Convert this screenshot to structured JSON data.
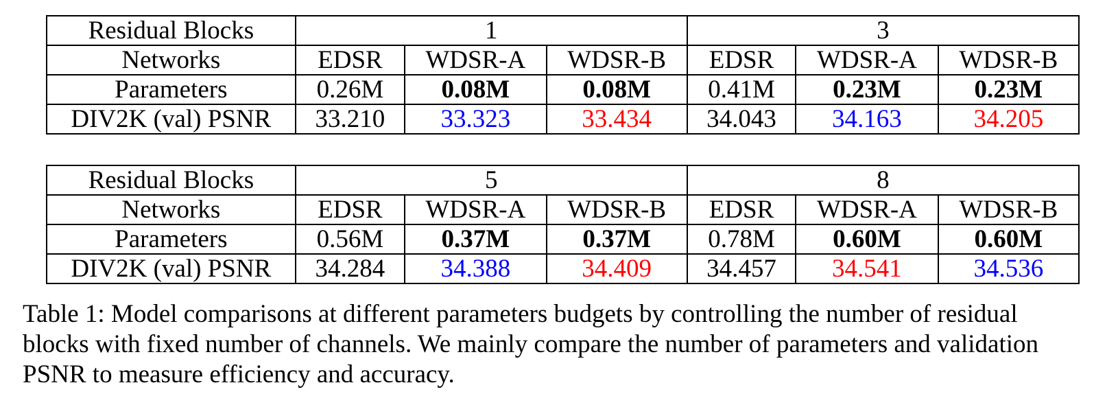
{
  "colors": {
    "blue_highlight": "#0000ff",
    "red_highlight": "#ff0000"
  },
  "tables": [
    {
      "row_labels": {
        "blocks": "Residual Blocks",
        "networks": "Networks",
        "params": "Parameters",
        "psnr": "DIV2K (val) PSNR"
      },
      "groups": [
        "1",
        "3"
      ],
      "networks": [
        "EDSR",
        "WDSR-A",
        "WDSR-B",
        "EDSR",
        "WDSR-A",
        "WDSR-B"
      ],
      "params": [
        "0.26M",
        "0.08M",
        "0.08M",
        "0.41M",
        "0.23M",
        "0.23M"
      ],
      "psnr": [
        "33.210",
        "33.323",
        "33.434",
        "34.043",
        "34.163",
        "34.205"
      ]
    },
    {
      "row_labels": {
        "blocks": "Residual Blocks",
        "networks": "Networks",
        "params": "Parameters",
        "psnr": "DIV2K (val) PSNR"
      },
      "groups": [
        "5",
        "8"
      ],
      "networks": [
        "EDSR",
        "WDSR-A",
        "WDSR-B",
        "EDSR",
        "WDSR-A",
        "WDSR-B"
      ],
      "params": [
        "0.56M",
        "0.37M",
        "0.37M",
        "0.78M",
        "0.60M",
        "0.60M"
      ],
      "psnr": [
        "34.284",
        "34.388",
        "34.409",
        "34.457",
        "34.541",
        "34.536"
      ]
    }
  ],
  "caption": {
    "line1": "Table 1: Model comparisons at different parameters budgets by controlling the number of residual",
    "line2": "blocks with fixed number of channels. We mainly compare the number of parameters and validation",
    "line3": "PSNR to measure efficiency and accuracy."
  }
}
